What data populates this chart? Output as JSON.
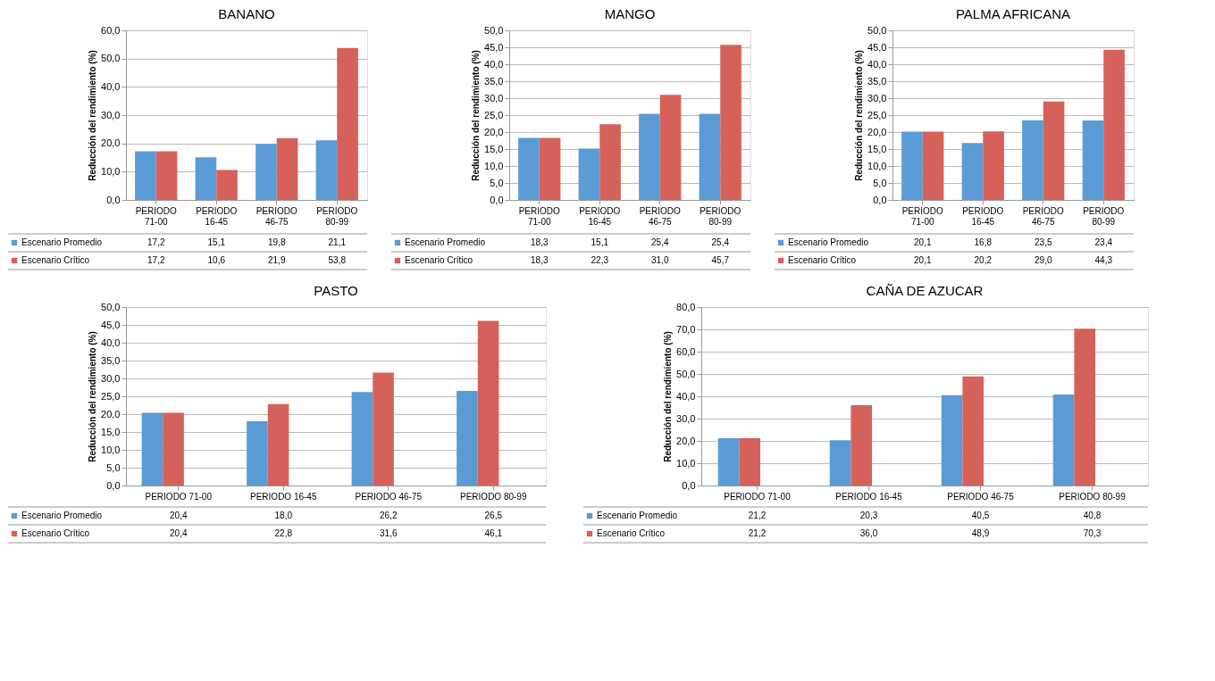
{
  "chart_data": [
    {
      "type": "bar",
      "title": "BANANO",
      "ylabel": "Reducción del rendimiento (%)",
      "categories": [
        "PERIODO 71-00",
        "PERIODO 16-45",
        "PERIODO 46-75",
        "PERIODO 80-99"
      ],
      "ylim": [
        0,
        60
      ],
      "yticks": [
        {
          "value": 0,
          "label": "0,0"
        },
        {
          "value": 10,
          "label": "10,0"
        },
        {
          "value": 20,
          "label": "20,0"
        },
        {
          "value": 30,
          "label": "30,0"
        },
        {
          "value": 40,
          "label": "40,0"
        },
        {
          "value": 50,
          "label": "50,0"
        },
        {
          "value": 60,
          "label": "60,0"
        }
      ],
      "grid": "y",
      "legend": "bottom",
      "series": [
        {
          "name": "Escenario Promedio",
          "color": "#5b9bd5",
          "values": [
            17.2,
            15.1,
            19.8,
            21.1
          ],
          "value_labels": [
            "17,2",
            "15,1",
            "19,8",
            "21,1"
          ]
        },
        {
          "name": "Escenario Crítico",
          "color": "#d6615b",
          "values": [
            17.2,
            10.6,
            21.9,
            53.8
          ],
          "value_labels": [
            "17,2",
            "10,6",
            "21,9",
            "53,8"
          ]
        }
      ]
    },
    {
      "type": "bar",
      "title": "MANGO",
      "ylabel": "Reducción del rendimiento (%)",
      "categories": [
        "PERIODO 71-00",
        "PERIODO 16-45",
        "PERIODO 46-75",
        "PERIODO 80-99"
      ],
      "ylim": [
        0,
        50
      ],
      "yticks": [
        {
          "value": 0,
          "label": "0,0"
        },
        {
          "value": 5,
          "label": "5,0"
        },
        {
          "value": 10,
          "label": "10,0"
        },
        {
          "value": 15,
          "label": "15,0"
        },
        {
          "value": 20,
          "label": "20,0"
        },
        {
          "value": 25,
          "label": "25,0"
        },
        {
          "value": 30,
          "label": "30,0"
        },
        {
          "value": 35,
          "label": "35,0"
        },
        {
          "value": 40,
          "label": "40,0"
        },
        {
          "value": 45,
          "label": "45,0"
        },
        {
          "value": 50,
          "label": "50,0"
        }
      ],
      "grid": "y",
      "legend": "bottom",
      "series": [
        {
          "name": "Escenario Promedio",
          "color": "#5b9bd5",
          "values": [
            18.3,
            15.1,
            25.4,
            25.4
          ],
          "value_labels": [
            "18,3",
            "15,1",
            "25,4",
            "25,4"
          ]
        },
        {
          "name": "Escenario Crítico",
          "color": "#d6615b",
          "values": [
            18.3,
            22.3,
            31.0,
            45.7
          ],
          "value_labels": [
            "18,3",
            "22,3",
            "31,0",
            "45,7"
          ]
        }
      ]
    },
    {
      "type": "bar",
      "title": "PALMA AFRICANA",
      "ylabel": "Reducción del rendimiento (%)",
      "categories": [
        "PERIODO 71-00",
        "PERIODO 16-45",
        "PERIODO 46-75",
        "PERIODO 80-99"
      ],
      "ylim": [
        0,
        50
      ],
      "yticks": [
        {
          "value": 0,
          "label": "0,0"
        },
        {
          "value": 5,
          "label": "5,0"
        },
        {
          "value": 10,
          "label": "10,0"
        },
        {
          "value": 15,
          "label": "15,0"
        },
        {
          "value": 20,
          "label": "20,0"
        },
        {
          "value": 25,
          "label": "25,0"
        },
        {
          "value": 30,
          "label": "30,0"
        },
        {
          "value": 35,
          "label": "35,0"
        },
        {
          "value": 40,
          "label": "40,0"
        },
        {
          "value": 45,
          "label": "45,0"
        },
        {
          "value": 50,
          "label": "50,0"
        }
      ],
      "grid": "y",
      "legend": "bottom",
      "series": [
        {
          "name": "Escenario Promedio",
          "color": "#5b9bd5",
          "values": [
            20.1,
            16.8,
            23.5,
            23.4
          ],
          "value_labels": [
            "20,1",
            "16,8",
            "23,5",
            "23,4"
          ]
        },
        {
          "name": "Escenario Crítico",
          "color": "#d6615b",
          "values": [
            20.1,
            20.2,
            29.0,
            44.3
          ],
          "value_labels": [
            "20,1",
            "20,2",
            "29,0",
            "44,3"
          ]
        }
      ]
    },
    {
      "type": "bar",
      "title": "PASTO",
      "ylabel": "Reducción del rendimiento (%)",
      "categories": [
        "PERIODO 71-00",
        "PERIODO 16-45",
        "PERIODO 46-75",
        "PERIODO 80-99"
      ],
      "ylim": [
        0,
        50
      ],
      "yticks": [
        {
          "value": 0,
          "label": "0,0"
        },
        {
          "value": 5,
          "label": "5,0"
        },
        {
          "value": 10,
          "label": "10,0"
        },
        {
          "value": 15,
          "label": "15,0"
        },
        {
          "value": 20,
          "label": "20,0"
        },
        {
          "value": 25,
          "label": "25,0"
        },
        {
          "value": 30,
          "label": "30,0"
        },
        {
          "value": 35,
          "label": "35,0"
        },
        {
          "value": 40,
          "label": "40,0"
        },
        {
          "value": 45,
          "label": "45,0"
        },
        {
          "value": 50,
          "label": "50,0"
        }
      ],
      "grid": "y",
      "legend": "bottom",
      "series": [
        {
          "name": "Escenario Promedio",
          "color": "#5b9bd5",
          "values": [
            20.4,
            18.0,
            26.2,
            26.5
          ],
          "value_labels": [
            "20,4",
            "18,0",
            "26,2",
            "26,5"
          ]
        },
        {
          "name": "Escenario Crítico",
          "color": "#d6615b",
          "values": [
            20.4,
            22.8,
            31.6,
            46.1
          ],
          "value_labels": [
            "20,4",
            "22,8",
            "31,6",
            "46,1"
          ]
        }
      ]
    },
    {
      "type": "bar",
      "title": "CAÑA DE AZUCAR",
      "ylabel": "Reducción del rendimiento (%)",
      "categories": [
        "PERIODO 71-00",
        "PERIODO 16-45",
        "PERIODO 46-75",
        "PERIODO 80-99"
      ],
      "ylim": [
        0,
        80
      ],
      "yticks": [
        {
          "value": 0,
          "label": "0,0"
        },
        {
          "value": 10,
          "label": "10,0"
        },
        {
          "value": 20,
          "label": "20,0"
        },
        {
          "value": 30,
          "label": "30,0"
        },
        {
          "value": 40,
          "label": "40,0"
        },
        {
          "value": 50,
          "label": "50,0"
        },
        {
          "value": 60,
          "label": "60,0"
        },
        {
          "value": 70,
          "label": "70,0"
        },
        {
          "value": 80,
          "label": "80,0"
        }
      ],
      "grid": "y",
      "legend": "bottom",
      "series": [
        {
          "name": "Escenario Promedio",
          "color": "#5b9bd5",
          "values": [
            21.2,
            20.3,
            40.5,
            40.8
          ],
          "value_labels": [
            "21,2",
            "20,3",
            "40,5",
            "40,8"
          ]
        },
        {
          "name": "Escenario Crítico",
          "color": "#d6615b",
          "values": [
            21.2,
            36.0,
            48.9,
            70.3
          ],
          "value_labels": [
            "21,2",
            "36,0",
            "48,9",
            "70,3"
          ]
        }
      ]
    }
  ]
}
